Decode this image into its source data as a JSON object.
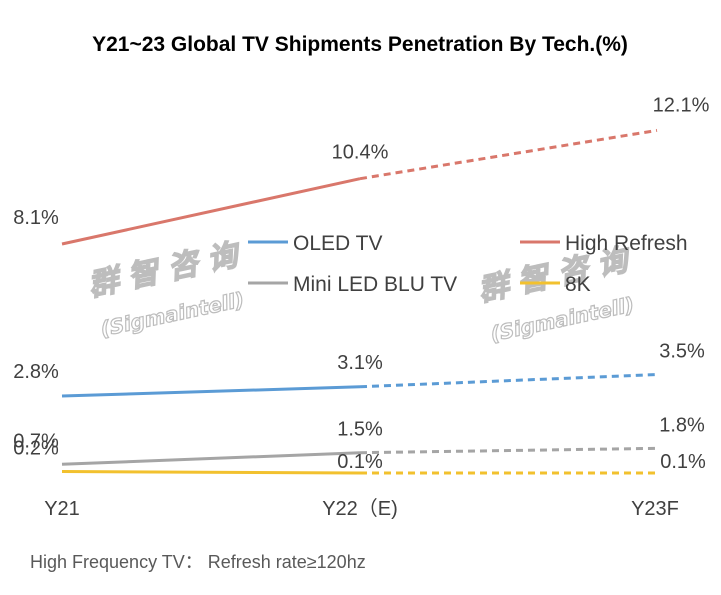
{
  "chart_data": {
    "type": "line",
    "title": "Y21~23 Global TV Shipments Penetration By Tech.(%)",
    "categories": [
      "Y21",
      "Y22（E)",
      "Y23F"
    ],
    "projection_style": "solid from Y21 to Y22, dashed from Y22 to Y23F",
    "series": [
      {
        "name": "OLED TV",
        "color": "#5b9bd5",
        "values": [
          2.8,
          3.1,
          3.5
        ],
        "labels": [
          "2.8%",
          "3.1%",
          "3.5%"
        ]
      },
      {
        "name": "High Refresh",
        "color": "#d9776b",
        "values": [
          8.1,
          10.4,
          12.1
        ],
        "labels": [
          "8.1%",
          "10.4%",
          "12.1%"
        ]
      },
      {
        "name": "Mini LED BLU TV",
        "color": "#a5a5a5",
        "values": [
          0.7,
          1.5,
          1.8
        ],
        "labels": [
          "0.7%",
          "1.5%",
          "1.8%"
        ]
      },
      {
        "name": "8K",
        "color": "#f2c12e",
        "values": [
          0.2,
          0.1,
          0.1
        ],
        "labels": [
          "0.2%",
          "0.1%",
          "0.1%"
        ]
      }
    ],
    "legend": "center",
    "grid": false
  },
  "footnote": "High Frequency TV：  Refresh rate≥120hz",
  "watermark": {
    "cn": "群 智 咨 询",
    "en": "(Sigmaintell)"
  }
}
